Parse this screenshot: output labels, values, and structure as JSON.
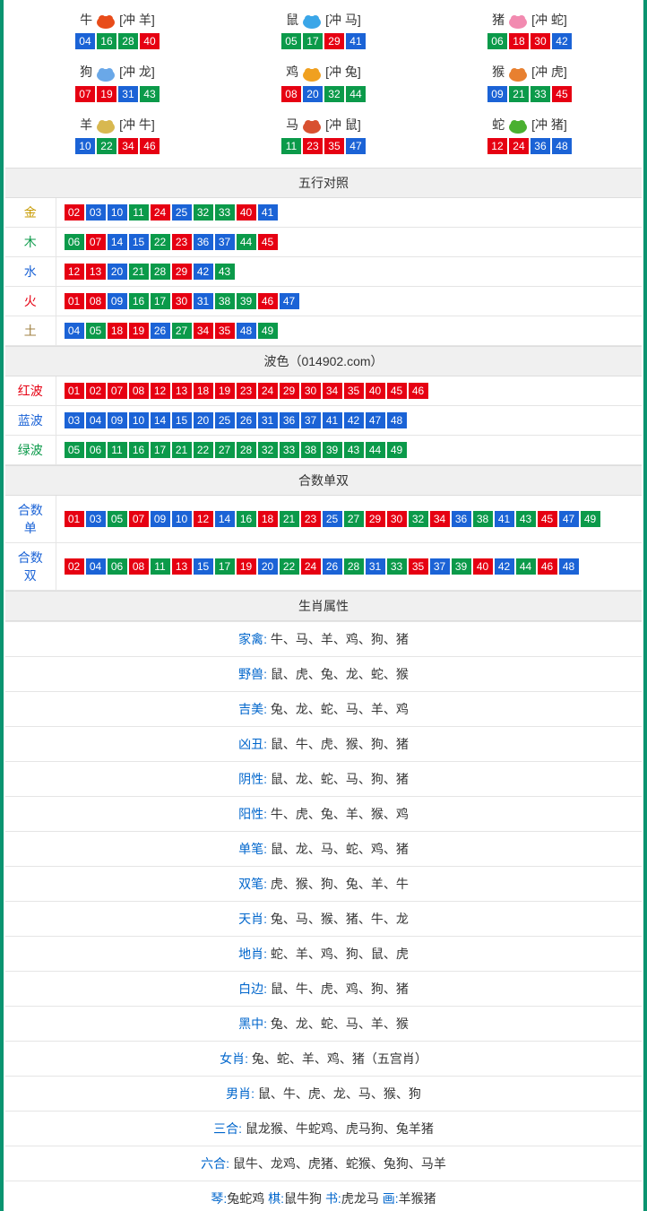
{
  "colors": {
    "red": "#e60012",
    "blue": "#1b63d6",
    "green": "#0b9a4a",
    "border": "#0a9470",
    "headerBg": "#f0f0f0",
    "gold": "#c79a00",
    "earth": "#a08040",
    "link": "#0066cc"
  },
  "zodiac_icons": {
    "ox": "#e84c1a",
    "rat": "#3aa6e8",
    "pig": "#f28ab0",
    "dog": "#6aa8e8",
    "rooster": "#f0a020",
    "monkey": "#e88030",
    "goat": "#d8b850",
    "horse": "#d85030",
    "snake": "#4ab030"
  },
  "zodiac": [
    {
      "name": "牛",
      "icon": "ox",
      "chong": "[冲 羊]",
      "nums": [
        {
          "v": "04",
          "c": "b"
        },
        {
          "v": "16",
          "c": "g"
        },
        {
          "v": "28",
          "c": "g"
        },
        {
          "v": "40",
          "c": "r"
        }
      ]
    },
    {
      "name": "鼠",
      "icon": "rat",
      "chong": "[冲 马]",
      "nums": [
        {
          "v": "05",
          "c": "g"
        },
        {
          "v": "17",
          "c": "g"
        },
        {
          "v": "29",
          "c": "r"
        },
        {
          "v": "41",
          "c": "b"
        }
      ]
    },
    {
      "name": "猪",
      "icon": "pig",
      "chong": "[冲 蛇]",
      "nums": [
        {
          "v": "06",
          "c": "g"
        },
        {
          "v": "18",
          "c": "r"
        },
        {
          "v": "30",
          "c": "r"
        },
        {
          "v": "42",
          "c": "b"
        }
      ]
    },
    {
      "name": "狗",
      "icon": "dog",
      "chong": "[冲 龙]",
      "nums": [
        {
          "v": "07",
          "c": "r"
        },
        {
          "v": "19",
          "c": "r"
        },
        {
          "v": "31",
          "c": "b"
        },
        {
          "v": "43",
          "c": "g"
        }
      ]
    },
    {
      "name": "鸡",
      "icon": "rooster",
      "chong": "[冲 兔]",
      "nums": [
        {
          "v": "08",
          "c": "r"
        },
        {
          "v": "20",
          "c": "b"
        },
        {
          "v": "32",
          "c": "g"
        },
        {
          "v": "44",
          "c": "g"
        }
      ]
    },
    {
      "name": "猴",
      "icon": "monkey",
      "chong": "[冲 虎]",
      "nums": [
        {
          "v": "09",
          "c": "b"
        },
        {
          "v": "21",
          "c": "g"
        },
        {
          "v": "33",
          "c": "g"
        },
        {
          "v": "45",
          "c": "r"
        }
      ]
    },
    {
      "name": "羊",
      "icon": "goat",
      "chong": "[冲 牛]",
      "nums": [
        {
          "v": "10",
          "c": "b"
        },
        {
          "v": "22",
          "c": "g"
        },
        {
          "v": "34",
          "c": "r"
        },
        {
          "v": "46",
          "c": "r"
        }
      ]
    },
    {
      "name": "马",
      "icon": "horse",
      "chong": "[冲 鼠]",
      "nums": [
        {
          "v": "11",
          "c": "g"
        },
        {
          "v": "23",
          "c": "r"
        },
        {
          "v": "35",
          "c": "r"
        },
        {
          "v": "47",
          "c": "b"
        }
      ]
    },
    {
      "name": "蛇",
      "icon": "snake",
      "chong": "[冲 猪]",
      "nums": [
        {
          "v": "12",
          "c": "r"
        },
        {
          "v": "24",
          "c": "r"
        },
        {
          "v": "36",
          "c": "b"
        },
        {
          "v": "48",
          "c": "b"
        }
      ]
    }
  ],
  "wuxing_header": "五行对照",
  "wuxing": [
    {
      "label": "金",
      "cls": "c-gold",
      "nums": [
        {
          "v": "02",
          "c": "r"
        },
        {
          "v": "03",
          "c": "b"
        },
        {
          "v": "10",
          "c": "b"
        },
        {
          "v": "11",
          "c": "g"
        },
        {
          "v": "24",
          "c": "r"
        },
        {
          "v": "25",
          "c": "b"
        },
        {
          "v": "32",
          "c": "g"
        },
        {
          "v": "33",
          "c": "g"
        },
        {
          "v": "40",
          "c": "r"
        },
        {
          "v": "41",
          "c": "b"
        }
      ]
    },
    {
      "label": "木",
      "cls": "c-wood",
      "nums": [
        {
          "v": "06",
          "c": "g"
        },
        {
          "v": "07",
          "c": "r"
        },
        {
          "v": "14",
          "c": "b"
        },
        {
          "v": "15",
          "c": "b"
        },
        {
          "v": "22",
          "c": "g"
        },
        {
          "v": "23",
          "c": "r"
        },
        {
          "v": "36",
          "c": "b"
        },
        {
          "v": "37",
          "c": "b"
        },
        {
          "v": "44",
          "c": "g"
        },
        {
          "v": "45",
          "c": "r"
        }
      ]
    },
    {
      "label": "水",
      "cls": "c-water",
      "nums": [
        {
          "v": "12",
          "c": "r"
        },
        {
          "v": "13",
          "c": "r"
        },
        {
          "v": "20",
          "c": "b"
        },
        {
          "v": "21",
          "c": "g"
        },
        {
          "v": "28",
          "c": "g"
        },
        {
          "v": "29",
          "c": "r"
        },
        {
          "v": "42",
          "c": "b"
        },
        {
          "v": "43",
          "c": "g"
        }
      ]
    },
    {
      "label": "火",
      "cls": "c-fire",
      "nums": [
        {
          "v": "01",
          "c": "r"
        },
        {
          "v": "08",
          "c": "r"
        },
        {
          "v": "09",
          "c": "b"
        },
        {
          "v": "16",
          "c": "g"
        },
        {
          "v": "17",
          "c": "g"
        },
        {
          "v": "30",
          "c": "r"
        },
        {
          "v": "31",
          "c": "b"
        },
        {
          "v": "38",
          "c": "g"
        },
        {
          "v": "39",
          "c": "g"
        },
        {
          "v": "46",
          "c": "r"
        },
        {
          "v": "47",
          "c": "b"
        }
      ]
    },
    {
      "label": "土",
      "cls": "c-earth",
      "nums": [
        {
          "v": "04",
          "c": "b"
        },
        {
          "v": "05",
          "c": "g"
        },
        {
          "v": "18",
          "c": "r"
        },
        {
          "v": "19",
          "c": "r"
        },
        {
          "v": "26",
          "c": "b"
        },
        {
          "v": "27",
          "c": "g"
        },
        {
          "v": "34",
          "c": "r"
        },
        {
          "v": "35",
          "c": "r"
        },
        {
          "v": "48",
          "c": "b"
        },
        {
          "v": "49",
          "c": "g"
        }
      ]
    }
  ],
  "bose_header": "波色（014902.com）",
  "bose": [
    {
      "label": "红波",
      "cls": "c-red",
      "nums": [
        {
          "v": "01",
          "c": "r"
        },
        {
          "v": "02",
          "c": "r"
        },
        {
          "v": "07",
          "c": "r"
        },
        {
          "v": "08",
          "c": "r"
        },
        {
          "v": "12",
          "c": "r"
        },
        {
          "v": "13",
          "c": "r"
        },
        {
          "v": "18",
          "c": "r"
        },
        {
          "v": "19",
          "c": "r"
        },
        {
          "v": "23",
          "c": "r"
        },
        {
          "v": "24",
          "c": "r"
        },
        {
          "v": "29",
          "c": "r"
        },
        {
          "v": "30",
          "c": "r"
        },
        {
          "v": "34",
          "c": "r"
        },
        {
          "v": "35",
          "c": "r"
        },
        {
          "v": "40",
          "c": "r"
        },
        {
          "v": "45",
          "c": "r"
        },
        {
          "v": "46",
          "c": "r"
        }
      ]
    },
    {
      "label": "蓝波",
      "cls": "c-water",
      "nums": [
        {
          "v": "03",
          "c": "b"
        },
        {
          "v": "04",
          "c": "b"
        },
        {
          "v": "09",
          "c": "b"
        },
        {
          "v": "10",
          "c": "b"
        },
        {
          "v": "14",
          "c": "b"
        },
        {
          "v": "15",
          "c": "b"
        },
        {
          "v": "20",
          "c": "b"
        },
        {
          "v": "25",
          "c": "b"
        },
        {
          "v": "26",
          "c": "b"
        },
        {
          "v": "31",
          "c": "b"
        },
        {
          "v": "36",
          "c": "b"
        },
        {
          "v": "37",
          "c": "b"
        },
        {
          "v": "41",
          "c": "b"
        },
        {
          "v": "42",
          "c": "b"
        },
        {
          "v": "47",
          "c": "b"
        },
        {
          "v": "48",
          "c": "b"
        }
      ]
    },
    {
      "label": "绿波",
      "cls": "c-green",
      "nums": [
        {
          "v": "05",
          "c": "g"
        },
        {
          "v": "06",
          "c": "g"
        },
        {
          "v": "11",
          "c": "g"
        },
        {
          "v": "16",
          "c": "g"
        },
        {
          "v": "17",
          "c": "g"
        },
        {
          "v": "21",
          "c": "g"
        },
        {
          "v": "22",
          "c": "g"
        },
        {
          "v": "27",
          "c": "g"
        },
        {
          "v": "28",
          "c": "g"
        },
        {
          "v": "32",
          "c": "g"
        },
        {
          "v": "33",
          "c": "g"
        },
        {
          "v": "38",
          "c": "g"
        },
        {
          "v": "39",
          "c": "g"
        },
        {
          "v": "43",
          "c": "g"
        },
        {
          "v": "44",
          "c": "g"
        },
        {
          "v": "49",
          "c": "g"
        }
      ]
    }
  ],
  "heshu_header": "合数单双",
  "heshu": [
    {
      "label": "合数单",
      "cls": "c-water",
      "nums": [
        {
          "v": "01",
          "c": "r"
        },
        {
          "v": "03",
          "c": "b"
        },
        {
          "v": "05",
          "c": "g"
        },
        {
          "v": "07",
          "c": "r"
        },
        {
          "v": "09",
          "c": "b"
        },
        {
          "v": "10",
          "c": "b"
        },
        {
          "v": "12",
          "c": "r"
        },
        {
          "v": "14",
          "c": "b"
        },
        {
          "v": "16",
          "c": "g"
        },
        {
          "v": "18",
          "c": "r"
        },
        {
          "v": "21",
          "c": "g"
        },
        {
          "v": "23",
          "c": "r"
        },
        {
          "v": "25",
          "c": "b"
        },
        {
          "v": "27",
          "c": "g"
        },
        {
          "v": "29",
          "c": "r"
        },
        {
          "v": "30",
          "c": "r"
        },
        {
          "v": "32",
          "c": "g"
        },
        {
          "v": "34",
          "c": "r"
        },
        {
          "v": "36",
          "c": "b"
        },
        {
          "v": "38",
          "c": "g"
        },
        {
          "v": "41",
          "c": "b"
        },
        {
          "v": "43",
          "c": "g"
        },
        {
          "v": "45",
          "c": "r"
        },
        {
          "v": "47",
          "c": "b"
        },
        {
          "v": "49",
          "c": "g"
        }
      ]
    },
    {
      "label": "合数双",
      "cls": "c-water",
      "nums": [
        {
          "v": "02",
          "c": "r"
        },
        {
          "v": "04",
          "c": "b"
        },
        {
          "v": "06",
          "c": "g"
        },
        {
          "v": "08",
          "c": "r"
        },
        {
          "v": "11",
          "c": "g"
        },
        {
          "v": "13",
          "c": "r"
        },
        {
          "v": "15",
          "c": "b"
        },
        {
          "v": "17",
          "c": "g"
        },
        {
          "v": "19",
          "c": "r"
        },
        {
          "v": "20",
          "c": "b"
        },
        {
          "v": "22",
          "c": "g"
        },
        {
          "v": "24",
          "c": "r"
        },
        {
          "v": "26",
          "c": "b"
        },
        {
          "v": "28",
          "c": "g"
        },
        {
          "v": "31",
          "c": "b"
        },
        {
          "v": "33",
          "c": "g"
        },
        {
          "v": "35",
          "c": "r"
        },
        {
          "v": "37",
          "c": "b"
        },
        {
          "v": "39",
          "c": "g"
        },
        {
          "v": "40",
          "c": "r"
        },
        {
          "v": "42",
          "c": "b"
        },
        {
          "v": "44",
          "c": "g"
        },
        {
          "v": "46",
          "c": "r"
        },
        {
          "v": "48",
          "c": "b"
        }
      ]
    }
  ],
  "shuxing_header": "生肖属性",
  "attrs": [
    {
      "label": "家禽:",
      "val": "牛、马、羊、鸡、狗、猪"
    },
    {
      "label": "野兽:",
      "val": "鼠、虎、兔、龙、蛇、猴"
    },
    {
      "label": "吉美:",
      "val": "兔、龙、蛇、马、羊、鸡"
    },
    {
      "label": "凶丑:",
      "val": "鼠、牛、虎、猴、狗、猪"
    },
    {
      "label": "阴性:",
      "val": "鼠、龙、蛇、马、狗、猪"
    },
    {
      "label": "阳性:",
      "val": "牛、虎、兔、羊、猴、鸡"
    },
    {
      "label": "单笔:",
      "val": "鼠、龙、马、蛇、鸡、猪"
    },
    {
      "label": "双笔:",
      "val": "虎、猴、狗、兔、羊、牛"
    },
    {
      "label": "天肖:",
      "val": "兔、马、猴、猪、牛、龙"
    },
    {
      "label": "地肖:",
      "val": "蛇、羊、鸡、狗、鼠、虎"
    },
    {
      "label": "白边:",
      "val": "鼠、牛、虎、鸡、狗、猪"
    },
    {
      "label": "黑中:",
      "val": "兔、龙、蛇、马、羊、猴"
    },
    {
      "label": "女肖:",
      "val": "兔、蛇、羊、鸡、猪（五宫肖）"
    },
    {
      "label": "男肖:",
      "val": "鼠、牛、虎、龙、马、猴、狗"
    },
    {
      "label": "三合:",
      "val": "鼠龙猴、牛蛇鸡、虎马狗、兔羊猪"
    },
    {
      "label": "六合:",
      "val": "鼠牛、龙鸡、虎猪、蛇猴、兔狗、马羊"
    }
  ],
  "bottom_line": {
    "parts": [
      {
        "l": "琴:",
        "v": "兔蛇鸡  "
      },
      {
        "l": "棋:",
        "v": "鼠牛狗  "
      },
      {
        "l": "书:",
        "v": "虎龙马  "
      },
      {
        "l": "画:",
        "v": "羊猴猪"
      }
    ]
  }
}
